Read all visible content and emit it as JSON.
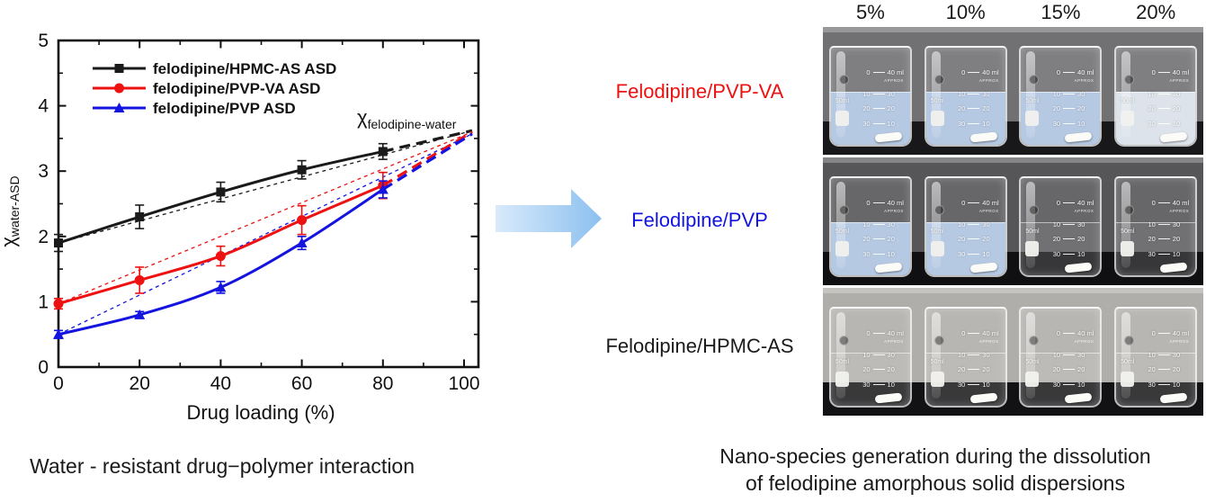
{
  "figure": {
    "left_caption": "Water - resistant drug−polymer interaction",
    "right_caption_line1": "Nano-species generation during the dissolution",
    "right_caption_line2": "of felodipine amorphous solid dispersions"
  },
  "arrow": {
    "direction": "right",
    "color_light": "#d9eafb",
    "color_dark": "#8cc0ef"
  },
  "chart_data": {
    "type": "line",
    "title": "",
    "xlabel": "Drug loading (%)",
    "ylabel_symbol": "χ",
    "ylabel_subscript": "water-ASD",
    "annotation_symbol": "χ",
    "annotation_subscript": "felodipine-water",
    "xlim": [
      0,
      103
    ],
    "ylim": [
      0,
      5
    ],
    "xticks": [
      0,
      20,
      40,
      60,
      80,
      100
    ],
    "yticks": [
      0,
      1,
      2,
      3,
      4,
      5
    ],
    "grid": false,
    "legend_position": "top-left",
    "x": [
      0,
      20,
      40,
      60,
      80
    ],
    "series": [
      {
        "name": "felodipine/HPMC-AS ASD",
        "color": "#1a1a1a",
        "marker": "square",
        "values": [
          1.9,
          2.3,
          2.68,
          3.02,
          3.3
        ],
        "errors": [
          0.13,
          0.18,
          0.15,
          0.14,
          0.12
        ],
        "dashed_extension_to": {
          "x": 102,
          "y": 3.62
        },
        "linear_reference_from": {
          "x": 0,
          "y": 1.9
        }
      },
      {
        "name": "felodipine/PVP-VA ASD",
        "color": "#ee1111",
        "marker": "circle",
        "values": [
          0.97,
          1.33,
          1.7,
          2.25,
          2.78
        ],
        "errors": [
          0.08,
          0.2,
          0.15,
          0.22,
          0.2
        ],
        "dashed_extension_to": {
          "x": 102,
          "y": 3.6
        },
        "linear_reference_from": {
          "x": 0,
          "y": 0.97
        }
      },
      {
        "name": "felodipine/PVP ASD",
        "color": "#1414e0",
        "marker": "triangle",
        "values": [
          0.5,
          0.8,
          1.22,
          1.9,
          2.72
        ],
        "errors": [
          0.06,
          0.05,
          0.09,
          0.1,
          0.13
        ],
        "dashed_extension_to": {
          "x": 102,
          "y": 3.57
        },
        "linear_reference_from": {
          "x": 0,
          "y": 0.5
        }
      }
    ]
  },
  "photo_panel": {
    "column_headers": [
      "5%",
      "10%",
      "15%",
      "20%"
    ],
    "beaker_markings": {
      "graduations": [
        [
          "0",
          "40 ml"
        ],
        [
          "10",
          "30"
        ],
        [
          "20",
          "20"
        ],
        [
          "30",
          "10"
        ]
      ],
      "approx_label": "APPROX",
      "volume_label": "50ml"
    },
    "liquid_colors": {
      "turbid-blue": "#b6c9e3",
      "slight-blue": "#dce3eb",
      "clear": "rgba(255,255,255,0.07)"
    },
    "rows": [
      {
        "label": "Felodipine/PVP-VA",
        "label_color": "#ee1111",
        "wall_color": "#717174",
        "bench_color": "#18181a",
        "beakers": [
          {
            "liquid": "turbid-blue"
          },
          {
            "liquid": "turbid-blue"
          },
          {
            "liquid": "turbid-blue"
          },
          {
            "liquid": "slight-blue"
          }
        ]
      },
      {
        "label": "Felodipine/PVP",
        "label_color": "#1414e0",
        "wall_color": "#565659",
        "bench_color": "#101012",
        "beakers": [
          {
            "liquid": "turbid-blue"
          },
          {
            "liquid": "turbid-blue"
          },
          {
            "liquid": "clear"
          },
          {
            "liquid": "clear"
          }
        ]
      },
      {
        "label": "Felodipine/HPMC-AS",
        "label_color": "#1a1a1a",
        "wall_color": "#b0aeaa",
        "bench_color": "#121214",
        "beakers": [
          {
            "liquid": "clear"
          },
          {
            "liquid": "clear"
          },
          {
            "liquid": "clear"
          },
          {
            "liquid": "clear"
          }
        ]
      }
    ]
  }
}
